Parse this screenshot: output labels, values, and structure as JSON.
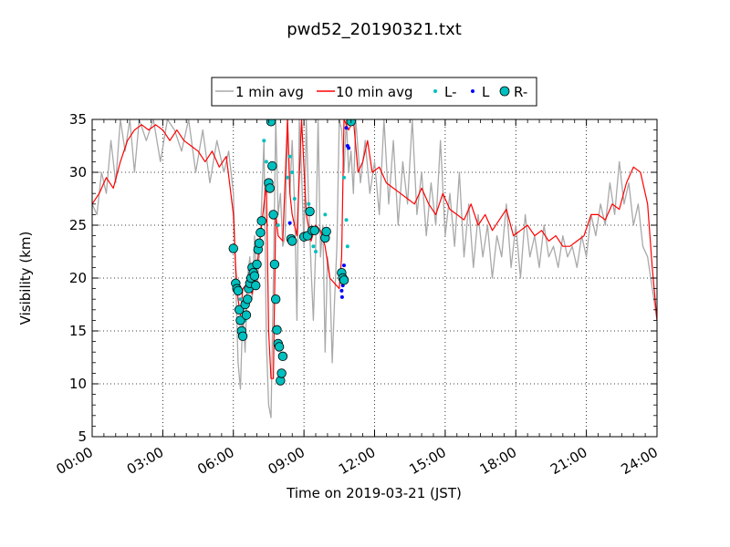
{
  "chart_data": {
    "type": "line",
    "title": "pwd52_20190321.txt",
    "xlabel": "Time on 2019-03-21 (JST)",
    "ylabel": "Visibility (km)",
    "xlim": [
      0,
      24
    ],
    "ylim": [
      5,
      35
    ],
    "x_ticks": [
      0,
      3,
      6,
      9,
      12,
      15,
      18,
      21,
      24
    ],
    "x_tick_labels": [
      "00:00",
      "03:00",
      "06:00",
      "09:00",
      "12:00",
      "15:00",
      "18:00",
      "21:00",
      "24:00"
    ],
    "y_ticks": [
      5,
      10,
      15,
      20,
      25,
      30,
      35
    ],
    "y_tick_labels": [
      "5",
      "10",
      "15",
      "20",
      "25",
      "30",
      "35"
    ],
    "grid": true,
    "legend_position": "top-center",
    "colors": {
      "one_min": "#a9a9a9",
      "ten_min": "#ff0000",
      "l_minus": "#00bfbf",
      "l": "#0000ff",
      "r_minus": "#00bfbf"
    },
    "series": [
      {
        "name": "1 min avg",
        "style": "line",
        "x": [
          0.0,
          0.2,
          0.4,
          0.6,
          0.8,
          1.0,
          1.2,
          1.4,
          1.6,
          1.8,
          2.0,
          2.3,
          2.6,
          2.9,
          3.2,
          3.5,
          3.8,
          4.1,
          4.4,
          4.7,
          5.0,
          5.3,
          5.6,
          5.8,
          6.0,
          6.1,
          6.2,
          6.3,
          6.4,
          6.5,
          6.6,
          6.7,
          6.8,
          6.9,
          7.0,
          7.1,
          7.2,
          7.3,
          7.4,
          7.5,
          7.6,
          7.7,
          7.8,
          7.9,
          8.0,
          8.1,
          8.2,
          8.3,
          8.4,
          8.5,
          8.6,
          8.7,
          8.8,
          8.9,
          9.0,
          9.1,
          9.2,
          9.3,
          9.4,
          9.5,
          9.6,
          9.7,
          9.8,
          9.9,
          10.0,
          10.1,
          10.2,
          10.3,
          10.4,
          10.5,
          10.6,
          10.7,
          10.8,
          10.9,
          11.0,
          11.1,
          11.2,
          11.4,
          11.6,
          11.8,
          12.0,
          12.2,
          12.4,
          12.6,
          12.8,
          13.0,
          13.2,
          13.4,
          13.6,
          13.8,
          14.0,
          14.2,
          14.4,
          14.6,
          14.8,
          15.0,
          15.2,
          15.4,
          15.6,
          15.8,
          16.0,
          16.2,
          16.4,
          16.6,
          16.8,
          17.0,
          17.2,
          17.4,
          17.6,
          17.8,
          18.0,
          18.2,
          18.4,
          18.6,
          18.8,
          19.0,
          19.2,
          19.4,
          19.6,
          19.8,
          20.0,
          20.2,
          20.4,
          20.6,
          20.8,
          21.0,
          21.2,
          21.4,
          21.6,
          21.8,
          22.0,
          22.2,
          22.4,
          22.6,
          22.8,
          23.0,
          23.2,
          23.4,
          23.6,
          23.8,
          24.0
        ],
        "y": [
          27.0,
          26.0,
          30.0,
          28.0,
          33.0,
          29.0,
          35.0,
          32.0,
          35.0,
          30.0,
          35.0,
          33.0,
          35.0,
          31.0,
          35.0,
          34.0,
          32.0,
          35.0,
          30.0,
          34.0,
          29.0,
          33.0,
          30.0,
          32.0,
          28.0,
          20.0,
          12.0,
          9.5,
          17.0,
          13.0,
          20.0,
          22.0,
          18.0,
          24.0,
          19.0,
          22.0,
          27.0,
          33.0,
          14.0,
          8.0,
          6.8,
          20.0,
          35.0,
          26.0,
          28.0,
          23.0,
          24.0,
          35.0,
          28.0,
          33.0,
          27.0,
          16.0,
          35.0,
          30.0,
          23.0,
          35.0,
          27.0,
          21.0,
          16.0,
          23.0,
          35.0,
          22.0,
          25.0,
          13.0,
          22.0,
          20.0,
          12.0,
          18.0,
          23.0,
          35.0,
          34.0,
          30.0,
          35.0,
          30.0,
          32.0,
          28.0,
          35.0,
          29.0,
          33.0,
          28.0,
          31.0,
          26.0,
          35.0,
          27.0,
          33.0,
          25.0,
          31.0,
          27.0,
          35.0,
          26.0,
          30.0,
          24.0,
          29.0,
          25.0,
          33.0,
          24.0,
          28.0,
          23.0,
          30.0,
          22.0,
          27.0,
          21.0,
          26.0,
          22.0,
          25.0,
          20.0,
          24.0,
          22.0,
          27.0,
          21.0,
          25.0,
          20.0,
          26.0,
          22.0,
          24.0,
          21.0,
          25.0,
          22.0,
          23.0,
          21.0,
          24.0,
          22.0,
          23.0,
          21.0,
          24.0,
          22.0,
          26.0,
          24.0,
          27.0,
          25.0,
          29.0,
          26.0,
          31.0,
          27.0,
          29.0,
          25.0,
          27.0,
          23.0,
          22.0,
          19.0,
          16.0
        ]
      },
      {
        "name": "10 min avg",
        "style": "line",
        "x": [
          0.0,
          0.3,
          0.6,
          0.9,
          1.2,
          1.5,
          1.8,
          2.1,
          2.4,
          2.7,
          3.0,
          3.3,
          3.6,
          3.9,
          4.2,
          4.5,
          4.8,
          5.1,
          5.4,
          5.7,
          6.0,
          6.1,
          6.2,
          6.3,
          6.4,
          6.6,
          6.8,
          7.0,
          7.2,
          7.4,
          7.5,
          7.6,
          7.7,
          7.8,
          7.9,
          8.1,
          8.3,
          8.4,
          8.5,
          8.7,
          8.9,
          9.1,
          9.3,
          9.5,
          9.7,
          9.9,
          10.1,
          10.3,
          10.5,
          10.6,
          10.7,
          10.9,
          11.1,
          11.3,
          11.5,
          11.7,
          11.9,
          12.2,
          12.5,
          12.8,
          13.1,
          13.4,
          13.7,
          14.0,
          14.3,
          14.6,
          14.9,
          15.2,
          15.5,
          15.8,
          16.1,
          16.4,
          16.7,
          17.0,
          17.3,
          17.6,
          17.9,
          18.2,
          18.5,
          18.8,
          19.1,
          19.4,
          19.7,
          20.0,
          20.3,
          20.6,
          20.9,
          21.2,
          21.5,
          21.8,
          22.1,
          22.4,
          22.7,
          23.0,
          23.3,
          23.6,
          23.8,
          24.0
        ],
        "y": [
          27.0,
          28.0,
          29.5,
          28.5,
          31.0,
          33.0,
          34.0,
          34.5,
          34.0,
          34.5,
          34.0,
          33.0,
          34.0,
          33.0,
          32.5,
          32.0,
          31.0,
          32.0,
          30.5,
          31.5,
          26.0,
          21.0,
          18.0,
          16.5,
          19.0,
          19.5,
          18.5,
          21.0,
          25.0,
          29.0,
          15.0,
          10.5,
          10.5,
          26.0,
          24.0,
          23.5,
          35.0,
          28.0,
          26.0,
          24.0,
          35.0,
          26.0,
          23.5,
          25.0,
          24.5,
          23.0,
          20.0,
          19.5,
          19.0,
          22.0,
          35.0,
          34.0,
          35.0,
          30.0,
          31.0,
          33.0,
          30.0,
          30.5,
          29.0,
          28.5,
          28.0,
          27.5,
          27.0,
          28.5,
          27.0,
          26.0,
          28.0,
          26.5,
          26.0,
          25.5,
          27.0,
          25.0,
          26.0,
          24.5,
          25.5,
          26.5,
          24.0,
          24.5,
          25.0,
          24.0,
          24.5,
          23.5,
          24.0,
          23.0,
          23.0,
          23.5,
          24.0,
          26.0,
          26.0,
          25.5,
          27.0,
          26.5,
          29.0,
          30.5,
          30.0,
          27.0,
          21.0,
          16.0
        ]
      },
      {
        "name": "L-",
        "style": "dot",
        "x": [
          6.2,
          6.3,
          6.5,
          6.9,
          7.3,
          7.4,
          7.6,
          7.9,
          8.3,
          8.4,
          8.5,
          8.6,
          9.2,
          9.4,
          9.5,
          9.6,
          9.9,
          10.7,
          10.8,
          10.85
        ],
        "y": [
          19.0,
          18.0,
          16.0,
          21.0,
          33.0,
          31.0,
          29.0,
          25.0,
          29.5,
          31.5,
          30.0,
          27.5,
          27.0,
          23.0,
          22.5,
          24.5,
          26.0,
          29.5,
          25.5,
          23.0
        ]
      },
      {
        "name": "L",
        "style": "dot",
        "x": [
          8.4,
          10.6,
          10.62,
          10.65,
          10.7,
          10.72,
          10.8,
          10.85,
          10.9,
          11.0
        ],
        "y": [
          25.2,
          18.8,
          18.2,
          19.3,
          21.2,
          20.0,
          34.2,
          32.5,
          32.3,
          34.8
        ]
      },
      {
        "name": "R-",
        "style": "circle",
        "x": [
          6.0,
          6.1,
          6.15,
          6.2,
          6.25,
          6.3,
          6.35,
          6.4,
          6.5,
          6.55,
          6.6,
          6.65,
          6.7,
          6.75,
          6.8,
          6.85,
          6.9,
          6.95,
          7.0,
          7.05,
          7.1,
          7.15,
          7.2,
          7.5,
          7.55,
          7.6,
          7.65,
          7.7,
          7.75,
          7.8,
          7.85,
          7.9,
          7.95,
          8.0,
          8.05,
          8.1,
          8.45,
          8.5,
          9.0,
          9.15,
          9.25,
          9.35,
          9.45,
          9.9,
          9.95,
          10.6,
          10.65,
          10.7,
          11.0
        ],
        "y": [
          22.8,
          19.5,
          19.0,
          18.8,
          17.0,
          16.0,
          15.0,
          14.5,
          17.5,
          16.5,
          18.0,
          19.0,
          19.5,
          20.0,
          21.0,
          20.5,
          20.2,
          19.3,
          21.3,
          22.7,
          23.3,
          24.3,
          25.4,
          29.0,
          28.5,
          34.8,
          30.6,
          26.0,
          21.3,
          18.0,
          15.1,
          13.8,
          13.5,
          10.3,
          11.0,
          12.6,
          23.7,
          23.5,
          23.9,
          24.0,
          26.3,
          24.5,
          24.5,
          23.8,
          24.4,
          20.5,
          20.0,
          19.8,
          34.8
        ]
      }
    ]
  }
}
